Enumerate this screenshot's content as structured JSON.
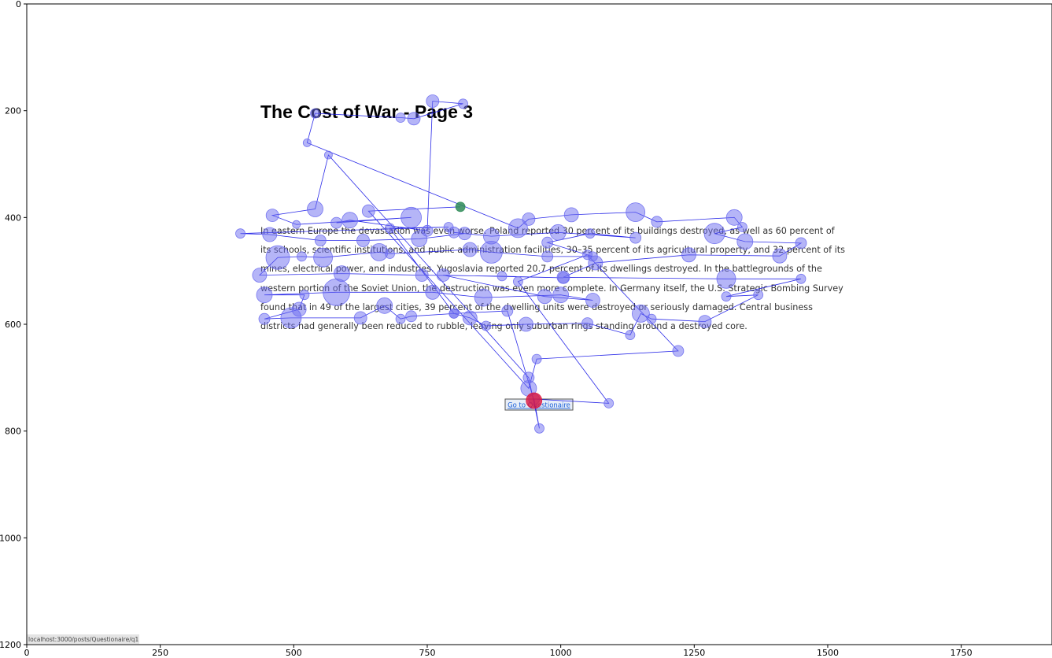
{
  "page": {
    "title": "The Cost of War - Page 3",
    "paragraph_lines": [
      "In eastern Europe the devastation was even worse. Poland reported 30 percent of its buildings destroyed, as well as 60 percent of",
      "its schools, scientific institutions, and public administration facilities, 30–35 percent of its agricultural property, and 32 percent of its",
      "mines, electrical power, and industries. Yugoslavia reported 20.7 percent of its dwellings destroyed. In the battlegrounds of the",
      "western portion of the Soviet Union, the destruction was even more complete. In Germany itself, the U.S. Strategic Bombing Survey",
      "found that in 49 of the largest cities, 39 percent of the dwelling units were destroyed or seriously damaged. Central business",
      "districts had generally been reduced to rubble, leaving only suburban rings standing around a destroyed core."
    ],
    "link_label": "Go to Questionaire",
    "status_url": "localhost:3000/posts/Questionaire/q1"
  },
  "colors": {
    "fixation": "#6b6bf0",
    "path": "#1414e6",
    "start": "#2e8b57",
    "end": "#dc143c"
  },
  "chart_data": {
    "type": "scatter",
    "title": "",
    "xlabel": "",
    "ylabel": "",
    "xlim": [
      0,
      1920
    ],
    "ylim": [
      1200,
      0
    ],
    "xticks": [
      0,
      250,
      500,
      750,
      1000,
      1250,
      1500,
      1750
    ],
    "yticks": [
      0,
      200,
      400,
      600,
      800,
      1000,
      1200
    ],
    "grid": false,
    "connected_path": true,
    "points": [
      {
        "x": 812,
        "y": 380,
        "size": 4
      },
      {
        "x": 640,
        "y": 388,
        "size": 6
      },
      {
        "x": 940,
        "y": 720,
        "size": 8
      },
      {
        "x": 955,
        "y": 665,
        "size": 4
      },
      {
        "x": 1220,
        "y": 650,
        "size": 5
      },
      {
        "x": 1050,
        "y": 470,
        "size": 4
      },
      {
        "x": 920,
        "y": 520,
        "size": 4
      },
      {
        "x": 1090,
        "y": 748,
        "size": 4
      },
      {
        "x": 950,
        "y": 740,
        "size": 5
      },
      {
        "x": 960,
        "y": 795,
        "size": 4
      },
      {
        "x": 940,
        "y": 700,
        "size": 5
      },
      {
        "x": 565,
        "y": 283,
        "size": 3
      },
      {
        "x": 540,
        "y": 384,
        "size": 8
      },
      {
        "x": 460,
        "y": 396,
        "size": 6
      },
      {
        "x": 505,
        "y": 413,
        "size": 3
      },
      {
        "x": 720,
        "y": 400,
        "size": 11
      },
      {
        "x": 580,
        "y": 410,
        "size": 5
      },
      {
        "x": 605,
        "y": 405,
        "size": 8
      },
      {
        "x": 750,
        "y": 425,
        "size": 5
      },
      {
        "x": 760,
        "y": 182,
        "size": 6
      },
      {
        "x": 817,
        "y": 187,
        "size": 4
      },
      {
        "x": 725,
        "y": 215,
        "size": 6
      },
      {
        "x": 700,
        "y": 213,
        "size": 4
      },
      {
        "x": 540,
        "y": 205,
        "size": 4
      },
      {
        "x": 525,
        "y": 260,
        "size": 3
      },
      {
        "x": 920,
        "y": 420,
        "size": 10
      },
      {
        "x": 940,
        "y": 403,
        "size": 6
      },
      {
        "x": 1020,
        "y": 395,
        "size": 7
      },
      {
        "x": 1140,
        "y": 390,
        "size": 10
      },
      {
        "x": 1180,
        "y": 408,
        "size": 5
      },
      {
        "x": 1325,
        "y": 400,
        "size": 8
      },
      {
        "x": 1340,
        "y": 418,
        "size": 4
      },
      {
        "x": 1288,
        "y": 430,
        "size": 11
      },
      {
        "x": 1345,
        "y": 445,
        "size": 8
      },
      {
        "x": 1450,
        "y": 448,
        "size": 5
      },
      {
        "x": 1410,
        "y": 472,
        "size": 7
      },
      {
        "x": 1240,
        "y": 470,
        "size": 7
      },
      {
        "x": 1065,
        "y": 485,
        "size": 7
      },
      {
        "x": 1005,
        "y": 512,
        "size": 6
      },
      {
        "x": 1310,
        "y": 515,
        "size": 10
      },
      {
        "x": 1450,
        "y": 515,
        "size": 4
      },
      {
        "x": 1310,
        "y": 548,
        "size": 4
      },
      {
        "x": 1370,
        "y": 545,
        "size": 4
      },
      {
        "x": 1270,
        "y": 595,
        "size": 6
      },
      {
        "x": 1170,
        "y": 590,
        "size": 4
      },
      {
        "x": 1150,
        "y": 580,
        "size": 9
      },
      {
        "x": 1130,
        "y": 620,
        "size": 4
      },
      {
        "x": 1050,
        "y": 598,
        "size": 5
      },
      {
        "x": 935,
        "y": 600,
        "size": 7
      },
      {
        "x": 860,
        "y": 603,
        "size": 4
      },
      {
        "x": 830,
        "y": 588,
        "size": 7
      },
      {
        "x": 800,
        "y": 580,
        "size": 4
      },
      {
        "x": 720,
        "y": 585,
        "size": 5
      },
      {
        "x": 700,
        "y": 590,
        "size": 4
      },
      {
        "x": 670,
        "y": 565,
        "size": 8
      },
      {
        "x": 625,
        "y": 588,
        "size": 6
      },
      {
        "x": 495,
        "y": 588,
        "size": 11
      },
      {
        "x": 445,
        "y": 590,
        "size": 5
      },
      {
        "x": 510,
        "y": 572,
        "size": 7
      },
      {
        "x": 520,
        "y": 545,
        "size": 4
      },
      {
        "x": 445,
        "y": 545,
        "size": 8
      },
      {
        "x": 580,
        "y": 540,
        "size": 15
      },
      {
        "x": 760,
        "y": 540,
        "size": 7
      },
      {
        "x": 855,
        "y": 550,
        "size": 9
      },
      {
        "x": 1000,
        "y": 545,
        "size": 8
      },
      {
        "x": 1060,
        "y": 555,
        "size": 7
      },
      {
        "x": 970,
        "y": 548,
        "size": 7
      },
      {
        "x": 780,
        "y": 508,
        "size": 6
      },
      {
        "x": 1005,
        "y": 513,
        "size": 5
      },
      {
        "x": 890,
        "y": 510,
        "size": 4
      },
      {
        "x": 740,
        "y": 508,
        "size": 6
      },
      {
        "x": 590,
        "y": 505,
        "size": 8
      },
      {
        "x": 436,
        "y": 508,
        "size": 7
      },
      {
        "x": 470,
        "y": 475,
        "size": 13
      },
      {
        "x": 515,
        "y": 473,
        "size": 4
      },
      {
        "x": 555,
        "y": 475,
        "size": 10
      },
      {
        "x": 660,
        "y": 465,
        "size": 9
      },
      {
        "x": 680,
        "y": 468,
        "size": 4
      },
      {
        "x": 830,
        "y": 460,
        "size": 7
      },
      {
        "x": 870,
        "y": 465,
        "size": 12
      },
      {
        "x": 975,
        "y": 473,
        "size": 5
      },
      {
        "x": 1060,
        "y": 473,
        "size": 4
      },
      {
        "x": 975,
        "y": 447,
        "size": 5
      },
      {
        "x": 1055,
        "y": 430,
        "size": 4
      },
      {
        "x": 1140,
        "y": 438,
        "size": 5
      },
      {
        "x": 995,
        "y": 428,
        "size": 8
      },
      {
        "x": 870,
        "y": 435,
        "size": 8
      },
      {
        "x": 800,
        "y": 428,
        "size": 5
      },
      {
        "x": 820,
        "y": 430,
        "size": 6
      },
      {
        "x": 735,
        "y": 440,
        "size": 8
      },
      {
        "x": 630,
        "y": 443,
        "size": 6
      },
      {
        "x": 550,
        "y": 443,
        "size": 5
      },
      {
        "x": 455,
        "y": 432,
        "size": 7
      },
      {
        "x": 400,
        "y": 430,
        "size": 4
      },
      {
        "x": 790,
        "y": 418,
        "size": 4
      },
      {
        "x": 680,
        "y": 420,
        "size": 4
      },
      {
        "x": 800,
        "y": 580,
        "size": 4
      },
      {
        "x": 900,
        "y": 575,
        "size": 5
      },
      {
        "x": 950,
        "y": 743,
        "size": 8
      }
    ]
  }
}
